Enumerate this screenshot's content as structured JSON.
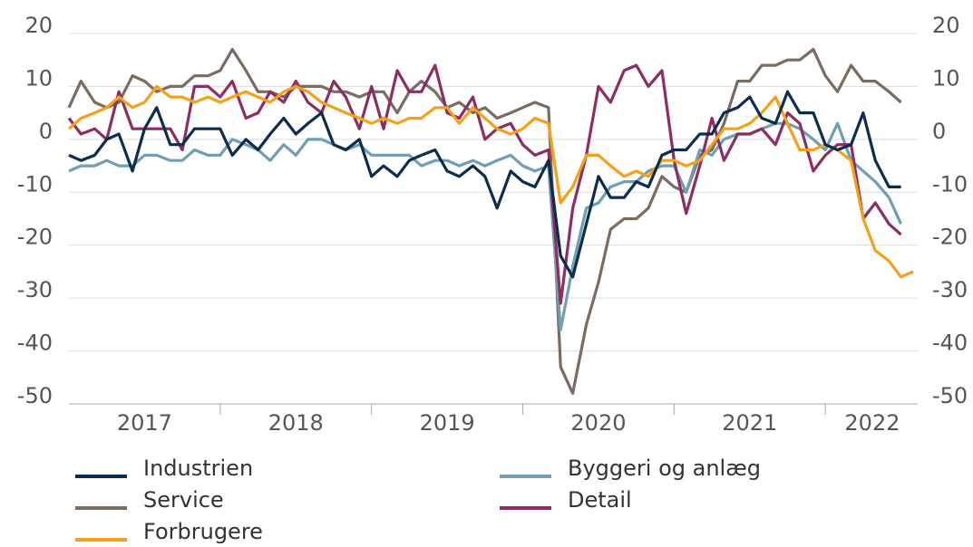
{
  "chart_data": {
    "type": "line",
    "x": [
      2017,
      2017.08,
      2017.17,
      2017.25,
      2017.33,
      2017.42,
      2017.5,
      2017.58,
      2017.67,
      2017.75,
      2017.83,
      2017.92,
      2018,
      2018.08,
      2018.17,
      2018.25,
      2018.33,
      2018.42,
      2018.5,
      2018.58,
      2018.67,
      2018.75,
      2018.83,
      2018.92,
      2019,
      2019.08,
      2019.17,
      2019.25,
      2019.33,
      2019.42,
      2019.5,
      2019.58,
      2019.67,
      2019.75,
      2019.83,
      2019.92,
      2020,
      2020.08,
      2020.17,
      2020.25,
      2020.33,
      2020.42,
      2020.5,
      2020.58,
      2020.67,
      2020.75,
      2020.83,
      2020.92,
      2021,
      2021.08,
      2021.17,
      2021.25,
      2021.33,
      2021.42,
      2021.5,
      2021.58,
      2021.67,
      2021.75,
      2021.83,
      2021.92,
      2022,
      2022.08,
      2022.17,
      2022.25,
      2022.33,
      2022.42,
      2022.5,
      2022.58
    ],
    "series": [
      {
        "name": "Industrien",
        "color": "#0d2d4f",
        "values": [
          -3,
          -4,
          -3,
          0,
          1,
          -6,
          2,
          6,
          -1,
          -1,
          2,
          2,
          2,
          -3,
          0,
          -2,
          1,
          4,
          1,
          3,
          5,
          -1,
          -2,
          0,
          -7,
          -5,
          -7,
          -4,
          -3,
          -2,
          -6,
          -7,
          -5,
          -7,
          -13,
          -6,
          -8,
          -9,
          -4,
          -22,
          -26,
          -16,
          -7,
          -11,
          -11,
          -8,
          -9,
          -3,
          -2,
          -2,
          1,
          1,
          5,
          6,
          8,
          4,
          3,
          9,
          5,
          5,
          -1,
          -2,
          -1,
          5,
          -4,
          -9,
          -9,
          null
        ]
      },
      {
        "name": "Service",
        "color": "#7b6b61",
        "values": [
          6,
          11,
          7,
          6,
          7,
          12,
          11,
          9,
          10,
          10,
          12,
          12,
          13,
          17,
          13,
          9,
          9,
          8,
          10,
          10,
          10,
          9,
          9,
          8,
          9,
          9,
          5,
          9,
          11,
          9,
          6,
          7,
          5,
          6,
          4,
          5,
          6,
          7,
          6,
          -43,
          -48,
          -35,
          -27,
          -17,
          -15,
          -15,
          -13,
          -7,
          -9,
          -10,
          -3,
          -2,
          3,
          11,
          11,
          14,
          14,
          15,
          15,
          17,
          12,
          9,
          14,
          11,
          11,
          9,
          7,
          null
        ]
      },
      {
        "name": "Forbrugere",
        "color": "#f6a01a",
        "values": [
          2,
          4,
          5,
          6,
          8,
          6,
          7,
          10,
          8,
          8,
          7,
          8,
          7,
          8,
          9,
          8,
          7,
          9,
          10,
          9,
          7,
          6,
          5,
          4,
          3,
          4,
          3,
          4,
          4,
          6,
          6,
          3,
          6,
          4,
          2,
          1,
          2,
          4,
          3,
          -12,
          -9,
          -3,
          -3,
          -5,
          -7,
          -6,
          -7,
          -4,
          -4,
          -5,
          -4,
          -1,
          2,
          2,
          3,
          5,
          8,
          3,
          -2,
          -2,
          -1,
          -2,
          -4,
          -15,
          -21,
          -23,
          -26,
          -25
        ]
      },
      {
        "name": "Byggeri og anlæg",
        "color": "#6f9fb0",
        "values": [
          -6,
          -5,
          -5,
          -4,
          -5,
          -5,
          -3,
          -3,
          -4,
          -4,
          -2,
          -3,
          -3,
          0,
          -1,
          -2,
          -4,
          -1,
          -3,
          0,
          0,
          -1,
          -2,
          -1,
          -3,
          -3,
          -3,
          -3,
          -5,
          -4,
          -4,
          -5,
          -4,
          -5,
          -4,
          -3,
          -5,
          -6,
          -5,
          -36,
          -24,
          -13,
          -12,
          -9,
          -8,
          -8,
          -6,
          -5,
          -5,
          -10,
          -2,
          -3,
          0,
          1,
          1,
          2,
          3,
          3,
          2,
          0,
          -2,
          3,
          -4,
          -6,
          -8,
          -11,
          -16,
          null
        ]
      },
      {
        "name": "Detail",
        "color": "#8c2d63",
        "values": [
          4,
          1,
          2,
          0,
          9,
          2,
          2,
          2,
          2,
          -2,
          10,
          10,
          8,
          11,
          4,
          5,
          9,
          7,
          11,
          7,
          5,
          11,
          8,
          2,
          10,
          2,
          13,
          9,
          9,
          14,
          5,
          4,
          8,
          0,
          2,
          3,
          -1,
          -3,
          -2,
          -31,
          -13,
          -3,
          10,
          7,
          13,
          14,
          10,
          13,
          -4,
          -14,
          -5,
          4,
          -4,
          1,
          1,
          2,
          -1,
          5,
          3,
          -6,
          -3,
          -1,
          -1,
          -15,
          -12,
          -16,
          -18,
          null
        ]
      }
    ],
    "xlim": [
      2017,
      2022.61
    ],
    "xticks": [
      {
        "value": 2017.5,
        "label": "2017"
      },
      {
        "value": 2018.5,
        "label": "2018"
      },
      {
        "value": 2019.5,
        "label": "2019"
      },
      {
        "value": 2020.5,
        "label": "2020"
      },
      {
        "value": 2021.5,
        "label": "2021"
      },
      {
        "value": 2022.31,
        "label": "2022"
      }
    ],
    "ylim": [
      -50,
      20
    ],
    "yticks": [
      -50,
      -40,
      -30,
      -20,
      -10,
      0,
      10,
      20
    ],
    "grid": true
  }
}
